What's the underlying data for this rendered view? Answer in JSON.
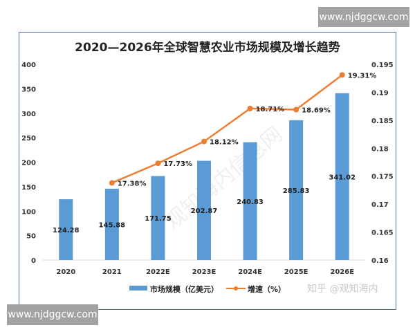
{
  "chart_data": {
    "type": "bar+line",
    "title": "2020—2026年全球智慧农业市场规模及增长趋势",
    "categories": [
      "2020",
      "2021",
      "2022E",
      "2023E",
      "2024E",
      "2025E",
      "2026E"
    ],
    "series": [
      {
        "name": "市场规模（亿美元）",
        "type": "bar",
        "axis": "left",
        "color": "#5b9bd5",
        "values": [
          124.28,
          145.88,
          171.75,
          202.87,
          240.83,
          285.83,
          341.02
        ],
        "labels": [
          "124.28",
          "145.88",
          "171.75",
          "202.87",
          "240.83",
          "285.83",
          "341.02"
        ]
      },
      {
        "name": "增速（%）",
        "type": "line",
        "axis": "right",
        "color": "#ed7d31",
        "values": [
          null,
          0.1738,
          0.1773,
          0.1812,
          0.1871,
          0.1869,
          0.1931
        ],
        "labels": [
          "",
          "17.38%",
          "17.73%",
          "18.12%",
          "18.71%",
          "18.69%",
          "19.31%"
        ]
      }
    ],
    "y_left": {
      "range": [
        0,
        400
      ],
      "ticks": [
        "0",
        "50",
        "100",
        "150",
        "200",
        "250",
        "300",
        "350",
        "400"
      ]
    },
    "y_right": {
      "range": [
        0.16,
        0.195
      ],
      "ticks": [
        "0.16",
        "0.165",
        "0.17",
        "0.175",
        "0.18",
        "0.185",
        "0.19",
        "0.195"
      ]
    },
    "grid": false,
    "legend": "bottom"
  },
  "watermarks": {
    "site_top": "www.njdggcw.com",
    "site_bottom": "www.njdggcw.com",
    "zhihu": "知乎 @观知海内",
    "diagonal": "观知海内信息网"
  }
}
